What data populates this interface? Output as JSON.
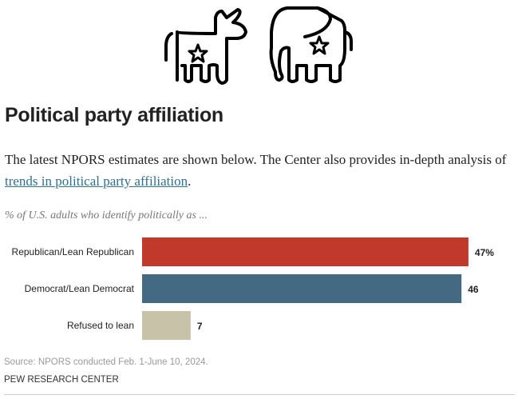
{
  "header": {
    "title": "Political party affiliation",
    "intro_text": "The latest NPORS estimates are shown below. The Center also provides in-depth analysis of ",
    "intro_link": "trends in political party affiliation",
    "intro_end": ".",
    "icons": [
      "donkey-icon",
      "elephant-icon"
    ]
  },
  "chart_data": {
    "type": "bar",
    "orientation": "horizontal",
    "subtitle": "% of U.S. adults who identify politically as ...",
    "categories": [
      "Republican/Lean Republican",
      "Democrat/Lean Democrat",
      "Refused to lean"
    ],
    "values": [
      47,
      46,
      7
    ],
    "value_labels": [
      "47%",
      "46",
      "7"
    ],
    "colors": [
      "#c0392b",
      "#436983",
      "#c8c2a8"
    ],
    "grid": false
  },
  "footer": {
    "source": "Source: NPORS conducted Feb. 1-June 10, 2024.",
    "org": "PEW RESEARCH CENTER"
  }
}
